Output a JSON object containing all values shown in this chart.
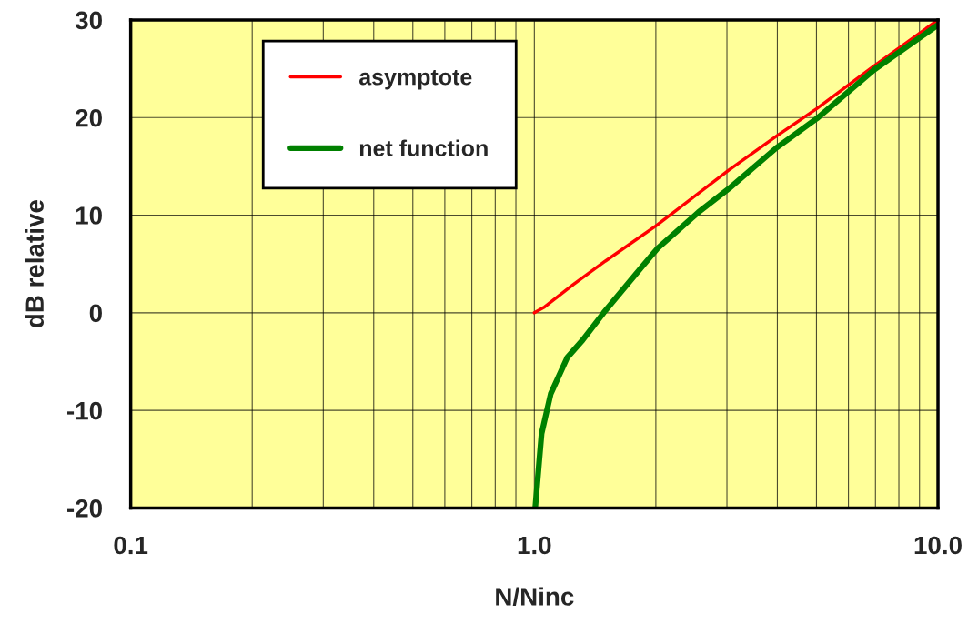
{
  "chart_data": {
    "type": "line",
    "xlabel": "N/Ninc",
    "ylabel": "dB relative",
    "log": "x",
    "xlim": [
      0.1,
      10
    ],
    "ylim": [
      -20,
      30
    ],
    "xticks": [
      {
        "value": 0.1,
        "label": "0.1"
      },
      {
        "value": 1,
        "label": "1.0"
      },
      {
        "value": 10,
        "label": "10.0"
      }
    ],
    "yticks": [
      -20,
      -10,
      0,
      10,
      20,
      30
    ],
    "grid": true,
    "legend": "top left",
    "marker": "none",
    "line_style": "solid",
    "series": [
      {
        "name": "asymptote",
        "color": "#ff0000",
        "x": [
          1.0,
          1.06,
          1.25,
          1.5,
          2.0,
          3.03,
          3.98,
          5.0,
          6.95,
          10.0
        ],
        "values": [
          0.0,
          0.6,
          2.9,
          5.3,
          8.9,
          14.6,
          18.1,
          20.9,
          25.3,
          30.0
        ]
      },
      {
        "name": "net function",
        "color": "#008000",
        "x": [
          1.005,
          1.042,
          1.098,
          1.206,
          1.317,
          1.485,
          1.83,
          2.02,
          2.55,
          3.03,
          3.98,
          5.01,
          6.95,
          10.0
        ],
        "values": [
          -20,
          -12.4,
          -8.3,
          -4.6,
          -2.8,
          0.0,
          4.5,
          6.6,
          10.3,
          12.7,
          16.9,
          19.9,
          24.9,
          29.5
        ]
      }
    ]
  }
}
